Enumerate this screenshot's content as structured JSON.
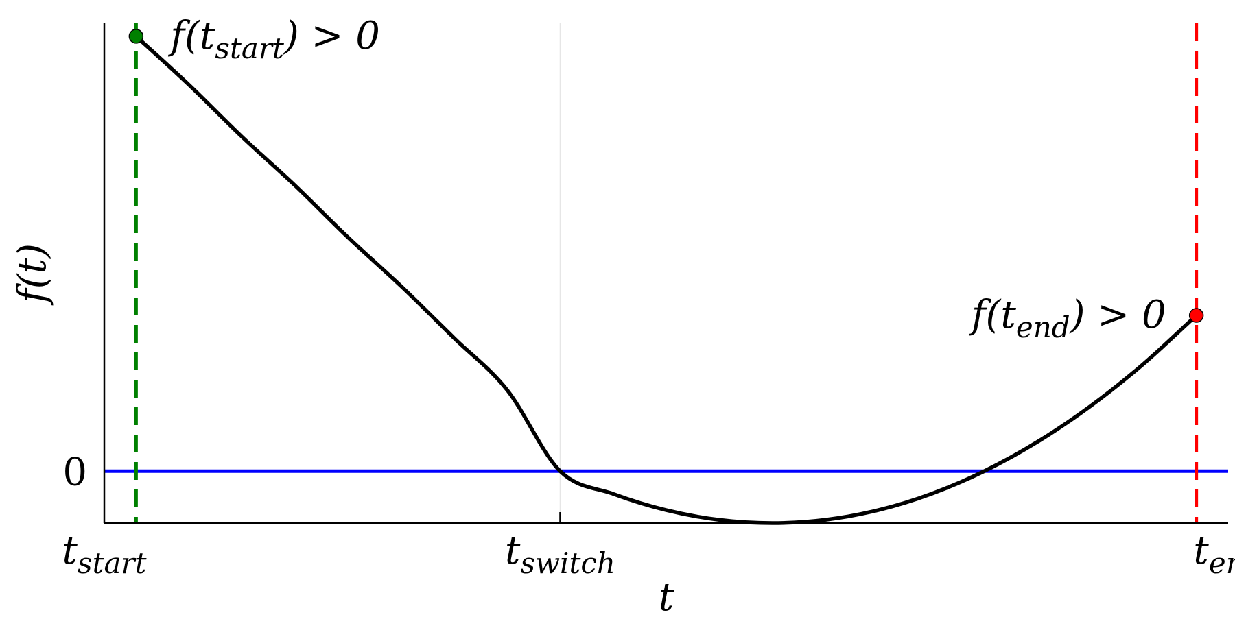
{
  "chart_data": {
    "type": "line",
    "title": "",
    "xlabel": "t",
    "ylabel": "f(t)",
    "x_ticks": [
      {
        "x": 0.0,
        "base": "t",
        "sub": "start"
      },
      {
        "x": 0.43,
        "base": "t",
        "sub": "switch"
      },
      {
        "x": 1.06,
        "base": "t",
        "sub": "end"
      }
    ],
    "y_ticks": [
      {
        "y": 0,
        "label": "0"
      }
    ],
    "xlim": [
      0.0,
      1.06
    ],
    "ylim": [
      -0.16,
      1.38
    ],
    "grid": "x-only",
    "series": [
      {
        "color": "#000000",
        "x": [
          0.03,
          0.08,
          0.13,
          0.18,
          0.23,
          0.28,
          0.33,
          0.38,
          0.43,
          0.48,
          0.53,
          0.58,
          0.63,
          0.68,
          0.73,
          0.78,
          0.83,
          0.88,
          0.93,
          0.98,
          1.03
        ],
        "y": [
          1.34,
          1.19,
          1.03,
          0.88,
          0.72,
          0.57,
          0.41,
          0.25,
          0.0,
          -0.07,
          -0.12,
          -0.15,
          -0.16,
          -0.15,
          -0.12,
          -0.07,
          0.0,
          0.09,
          0.2,
          0.33,
          0.48
        ]
      }
    ],
    "reference_lines": [
      {
        "type": "horizontal",
        "y": 0,
        "color": "#0000ff",
        "style": "solid"
      },
      {
        "type": "vertical",
        "x": 0.03,
        "color": "#008000",
        "style": "dashed"
      },
      {
        "type": "vertical",
        "x": 1.03,
        "color": "#ff0000",
        "style": "dashed"
      }
    ],
    "points": [
      {
        "x": 0.03,
        "y": 1.34,
        "color": "#008000",
        "annotation": {
          "prefix": "f(t",
          "sub": "start",
          "suffix": ") > 0",
          "position": "right"
        }
      },
      {
        "x": 1.03,
        "y": 0.48,
        "color": "#ff0000",
        "annotation": {
          "prefix": "f(t",
          "sub": "end",
          "suffix": ") > 0",
          "position": "left"
        }
      }
    ]
  }
}
